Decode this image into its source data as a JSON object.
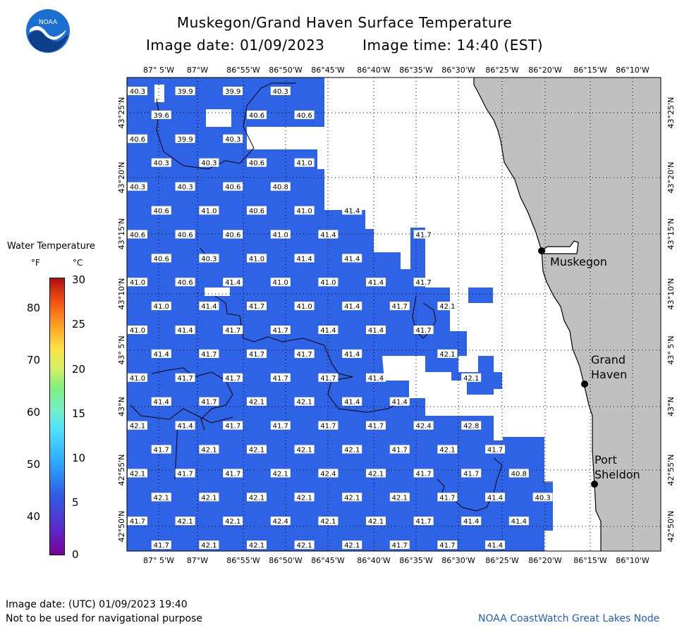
{
  "title": "Muskegon/Grand Haven Surface Temperature",
  "subtitle": {
    "date": "Image date: 01/09/2023",
    "time": "Image time: 14:40 (EST)"
  },
  "logo_text": "NOAA",
  "legend": {
    "title": "Water Temperature",
    "unit_f": "°F",
    "unit_c": "°C",
    "f_ticks": [
      "80",
      "70",
      "60",
      "50",
      "40"
    ],
    "c_ticks": [
      "30",
      "25",
      "20",
      "15",
      "10",
      "5",
      "0"
    ]
  },
  "lon_labels": [
    "87° 5'W",
    "87°W",
    "86°55'W",
    "86°50'W",
    "86°45'W",
    "86°40'W",
    "86°35'W",
    "86°30'W",
    "86°25'W",
    "86°20'W",
    "86°15'W",
    "86°10'W"
  ],
  "lat_labels": [
    "43°25'N",
    "43°20'N",
    "43°15'N",
    "43°10'N",
    "43° 5'N",
    "43°N",
    "42°55'N",
    "42°50'N"
  ],
  "places": [
    {
      "name": "Muskegon",
      "lines": [
        "Muskegon"
      ]
    },
    {
      "name": "Grand Haven",
      "lines": [
        "Grand",
        "Haven"
      ]
    },
    {
      "name": "Port Sheldon",
      "lines": [
        "Port",
        "Sheldon"
      ]
    }
  ],
  "temps": [
    [
      "40.3",
      null,
      "39.9",
      null,
      "39.9",
      null,
      "40.3",
      null,
      null,
      null,
      null,
      null,
      null,
      null,
      null,
      null,
      null,
      null
    ],
    [
      null,
      "39.6",
      null,
      null,
      null,
      "40.6",
      null,
      "40.6",
      null,
      null,
      null,
      null,
      null,
      null,
      null,
      null,
      null,
      null
    ],
    [
      "40.6",
      null,
      "39.9",
      null,
      "40.3",
      null,
      null,
      null,
      null,
      null,
      null,
      null,
      null,
      null,
      null,
      null,
      null,
      null
    ],
    [
      null,
      "40.3",
      null,
      "40.3",
      null,
      "40.6",
      null,
      "41.0",
      null,
      null,
      null,
      null,
      null,
      null,
      null,
      null,
      null,
      null
    ],
    [
      "40.3",
      null,
      "40.3",
      null,
      "40.6",
      null,
      "40.8",
      null,
      null,
      null,
      null,
      null,
      null,
      null,
      null,
      null,
      null,
      null
    ],
    [
      null,
      "40.6",
      null,
      "41.0",
      null,
      "40.6",
      null,
      "41.0",
      null,
      "41.4",
      null,
      null,
      null,
      null,
      null,
      null,
      null,
      null
    ],
    [
      "40.6",
      null,
      "40.6",
      null,
      "40.6",
      null,
      "41.0",
      null,
      "41.4",
      null,
      null,
      null,
      "41.7",
      null,
      null,
      null,
      null,
      null
    ],
    [
      null,
      "40.6",
      null,
      "40.3",
      null,
      "41.0",
      null,
      "41.4",
      null,
      "41.4",
      null,
      null,
      null,
      null,
      null,
      null,
      null,
      null
    ],
    [
      "41.0",
      null,
      "40.6",
      null,
      "41.4",
      null,
      "41.0",
      null,
      "41.0",
      null,
      "41.4",
      null,
      "41.7",
      null,
      null,
      null,
      null,
      null
    ],
    [
      null,
      "41.0",
      null,
      "41.4",
      null,
      "41.7",
      null,
      "41.0",
      null,
      "41.4",
      null,
      "41.7",
      null,
      "42.1",
      null,
      null,
      null,
      null
    ],
    [
      "41.0",
      null,
      "41.4",
      null,
      "41.7",
      null,
      "41.7",
      null,
      "41.4",
      null,
      "41.4",
      null,
      "41.7",
      null,
      null,
      null,
      null,
      null
    ],
    [
      null,
      "41.4",
      null,
      "41.7",
      null,
      "41.7",
      null,
      "41.7",
      null,
      "41.4",
      null,
      null,
      null,
      "42.1",
      null,
      null,
      null,
      null
    ],
    [
      "41.0",
      null,
      "41.7",
      null,
      "41.7",
      null,
      "41.7",
      null,
      "41.7",
      null,
      "41.4",
      null,
      null,
      null,
      "42.1",
      null,
      null,
      null
    ],
    [
      null,
      "41.4",
      null,
      "41.7",
      null,
      "42.1",
      null,
      "42.1",
      null,
      "41.4",
      null,
      "41.4",
      null,
      null,
      null,
      null,
      null,
      null
    ],
    [
      "42.1",
      null,
      "41.4",
      null,
      "41.7",
      null,
      "41.7",
      null,
      "41.7",
      null,
      "41.7",
      null,
      "42.4",
      null,
      "42.8",
      null,
      null,
      null
    ],
    [
      null,
      "41.7",
      null,
      "42.1",
      null,
      "42.1",
      null,
      "42.1",
      null,
      "42.1",
      null,
      "41.7",
      null,
      "42.1",
      null,
      "41.7",
      null,
      null
    ],
    [
      "42.1",
      null,
      "41.7",
      null,
      "41.7",
      null,
      "42.1",
      null,
      "42.4",
      null,
      "42.1",
      null,
      "41.7",
      null,
      "41.7",
      null,
      "40.8",
      null
    ],
    [
      null,
      "42.1",
      null,
      "42.1",
      null,
      "42.1",
      null,
      "42.1",
      null,
      "42.1",
      null,
      "42.1",
      null,
      "41.7",
      null,
      "41.4",
      null,
      "40.3"
    ],
    [
      "41.7",
      null,
      "42.1",
      null,
      "42.1",
      null,
      "42.4",
      null,
      "42.1",
      null,
      "42.1",
      null,
      "41.7",
      null,
      "41.4",
      null,
      "41.4",
      null
    ],
    [
      null,
      "41.7",
      null,
      "42.1",
      null,
      "42.1",
      null,
      "42.1",
      null,
      "42.1",
      null,
      "41.7",
      null,
      "41.7",
      null,
      "41.4",
      null,
      null
    ]
  ],
  "footer": {
    "utc": "Image date: (UTC) 01/09/2023  19:40",
    "disclaimer": "Not to be used for navigational purpose",
    "credit": "NOAA CoastWatch Great Lakes Node"
  },
  "colors": {
    "water": "#2f63e6",
    "land": "#c0c0c0",
    "cloud": "#ffffff",
    "coast": "#000000"
  }
}
